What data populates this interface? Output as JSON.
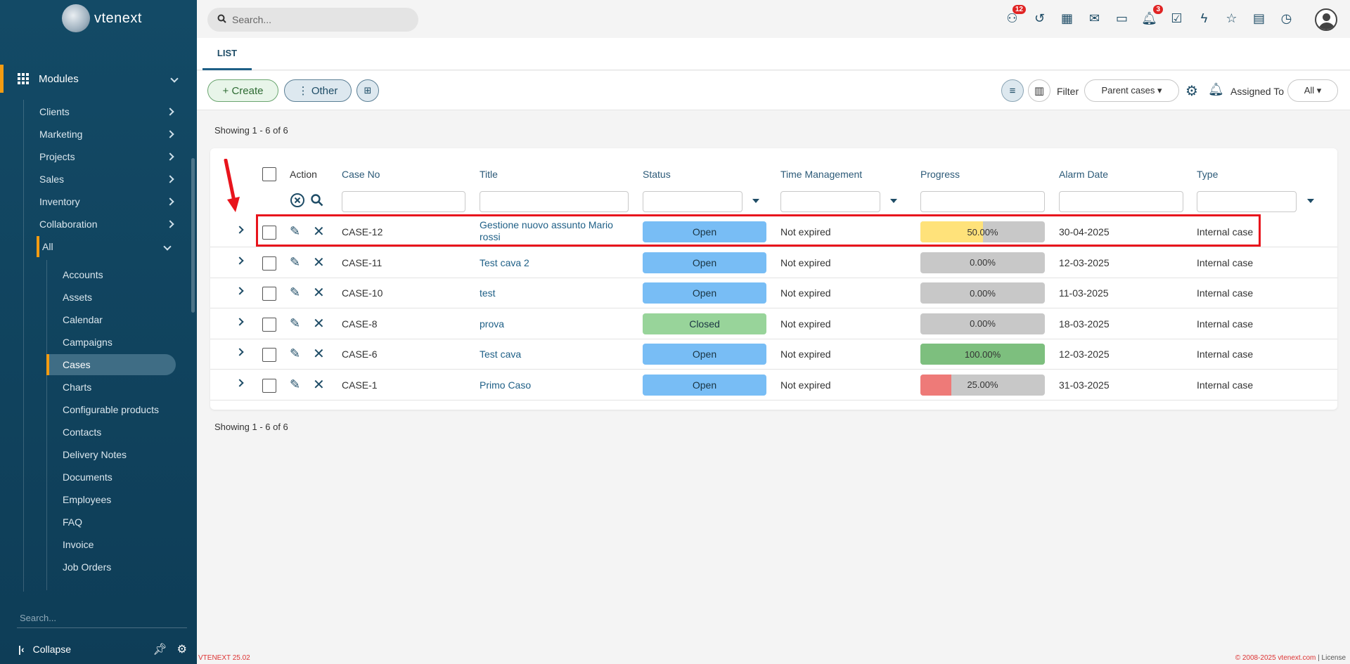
{
  "sidebar": {
    "logo_text": "vtenext",
    "modules_label": "Modules",
    "groups": [
      {
        "label": "Clients"
      },
      {
        "label": "Marketing"
      },
      {
        "label": "Projects"
      },
      {
        "label": "Sales"
      },
      {
        "label": "Inventory"
      },
      {
        "label": "Collaboration"
      },
      {
        "label": "All"
      }
    ],
    "items": [
      {
        "label": "Accounts"
      },
      {
        "label": "Assets"
      },
      {
        "label": "Calendar"
      },
      {
        "label": "Campaigns"
      },
      {
        "label": "Cases",
        "active": true
      },
      {
        "label": "Charts"
      },
      {
        "label": "Configurable products"
      },
      {
        "label": "Contacts"
      },
      {
        "label": "Delivery Notes"
      },
      {
        "label": "Documents"
      },
      {
        "label": "Employees"
      },
      {
        "label": "FAQ"
      },
      {
        "label": "Invoice"
      },
      {
        "label": "Job Orders"
      }
    ],
    "search_placeholder": "Search...",
    "collapse_label": "Collapse",
    "version": "VTENEXT 25.02"
  },
  "topbar": {
    "search_placeholder": "Search...",
    "icons": [
      {
        "name": "hierarchy-icon",
        "glyph": "⚇",
        "badge": "12"
      },
      {
        "name": "history-icon",
        "glyph": "↺"
      },
      {
        "name": "calendar-icon",
        "glyph": "▦"
      },
      {
        "name": "mail-icon",
        "glyph": "✉"
      },
      {
        "name": "chat-icon",
        "glyph": "▭"
      },
      {
        "name": "bell-icon",
        "glyph": "🔔︎",
        "badge": "3"
      },
      {
        "name": "task-check-icon",
        "glyph": "☑"
      },
      {
        "name": "lightning-icon",
        "glyph": "ϟ"
      },
      {
        "name": "star-icon",
        "glyph": "☆"
      },
      {
        "name": "document-icon",
        "glyph": "▤"
      },
      {
        "name": "timer-icon",
        "glyph": "◷"
      }
    ]
  },
  "tabs": {
    "list": "LIST"
  },
  "toolbar": {
    "create": "+ Create",
    "other": "⋮ Other",
    "filter_label": "Filter",
    "parent_cases": "Parent cases ▾",
    "assigned_to_label": "Assigned To",
    "assigned_to_value": "All ▾"
  },
  "showing": "Showing 1 - 6 of 6",
  "table": {
    "headers": {
      "action": "Action",
      "case_no": "Case No",
      "title": "Title",
      "status": "Status",
      "time_management": "Time Management",
      "progress": "Progress",
      "alarm_date": "Alarm Date",
      "type": "Type"
    },
    "rows": [
      {
        "case_no": "CASE-12",
        "title": "Gestione nuovo assunto Mario rossi",
        "status": "Open",
        "time": "Not expired",
        "progress": 50,
        "progress_label": "50.00%",
        "progress_color": "#ffe27a",
        "alarm_date": "30-04-2025",
        "type": "Internal case"
      },
      {
        "case_no": "CASE-11",
        "title": "Test cava 2",
        "status": "Open",
        "time": "Not expired",
        "progress": 0,
        "progress_label": "0.00%",
        "progress_color": "#c8c8c8",
        "alarm_date": "12-03-2025",
        "type": "Internal case"
      },
      {
        "case_no": "CASE-10",
        "title": "test",
        "status": "Open",
        "time": "Not expired",
        "progress": 0,
        "progress_label": "0.00%",
        "progress_color": "#c8c8c8",
        "alarm_date": "11-03-2025",
        "type": "Internal case"
      },
      {
        "case_no": "CASE-8",
        "title": "prova",
        "status": "Closed",
        "time": "Not expired",
        "progress": 0,
        "progress_label": "0.00%",
        "progress_color": "#c8c8c8",
        "alarm_date": "18-03-2025",
        "type": "Internal case"
      },
      {
        "case_no": "CASE-6",
        "title": "Test cava",
        "status": "Open",
        "time": "Not expired",
        "progress": 100,
        "progress_label": "100.00%",
        "progress_color": "#7dbf7e",
        "alarm_date": "12-03-2025",
        "type": "Internal case"
      },
      {
        "case_no": "CASE-1",
        "title": "Primo Caso",
        "status": "Open",
        "time": "Not expired",
        "progress": 25,
        "progress_label": "25.00%",
        "progress_color": "#ee7a78",
        "alarm_date": "31-03-2025",
        "type": "Internal case"
      }
    ],
    "status_colors": {
      "Open": "#78bdf5",
      "Closed": "#98d49a"
    }
  },
  "footer": {
    "copyright": "© 2008-2025 vtenext.com",
    "license": "License"
  }
}
